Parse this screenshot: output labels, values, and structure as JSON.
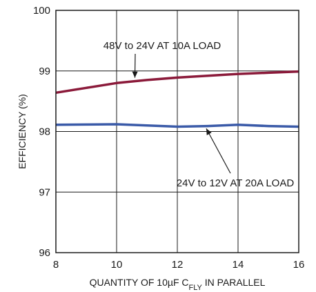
{
  "chart_data": {
    "type": "line",
    "title": "",
    "xlabel": {
      "prefix": "QUANTITY OF 10µF C",
      "subscript": "FLY",
      "suffix": " IN PARALLEL"
    },
    "ylabel": "EFFICIENCY (%)",
    "xlim": [
      8,
      16
    ],
    "ylim": [
      96,
      100
    ],
    "xticks": [
      8,
      10,
      12,
      14,
      16
    ],
    "yticks": [
      96,
      97,
      98,
      99,
      100
    ],
    "grid": true,
    "series": [
      {
        "name": "48V to 24V AT 10A LOAD",
        "color": "#8b1a3a",
        "x": [
          8,
          9,
          10,
          11,
          12,
          13,
          14,
          15,
          16
        ],
        "y": [
          98.64,
          98.72,
          98.8,
          98.85,
          98.89,
          98.92,
          98.95,
          98.97,
          98.99
        ]
      },
      {
        "name": "24V to 12V AT 20A LOAD",
        "color": "#3a5aa8",
        "x": [
          8,
          9,
          10,
          11,
          12,
          13,
          14,
          15,
          16
        ],
        "y": [
          98.11,
          98.115,
          98.12,
          98.1,
          98.08,
          98.09,
          98.11,
          98.09,
          98.08
        ]
      }
    ],
    "annotations": [
      {
        "text": "48V to 24V AT 10A LOAD",
        "series": 0,
        "points_to": {
          "x": 10.6,
          "y": 98.83
        }
      },
      {
        "text": "24V to 12V AT 20A LOAD",
        "series": 1,
        "points_to": {
          "x": 12.9,
          "y": 98.1
        }
      }
    ]
  }
}
